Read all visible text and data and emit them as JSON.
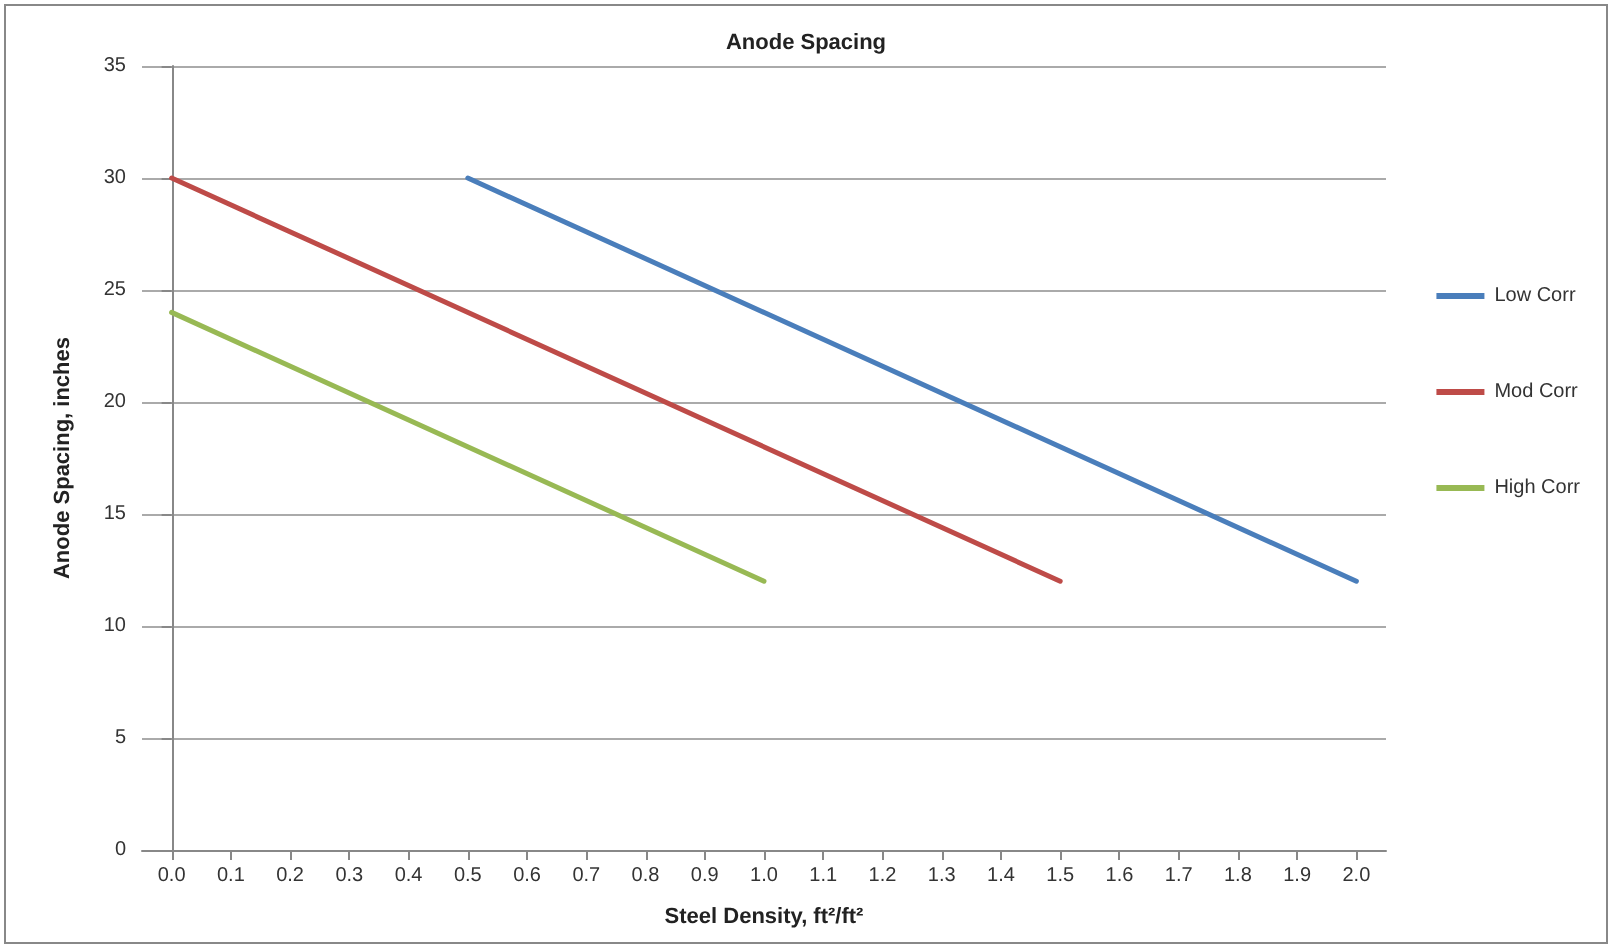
{
  "chart_data": {
    "type": "line",
    "title": "Anode Spacing",
    "xlabel": "Steel Density, ft²/ft²",
    "ylabel": "Anode Spacing, inches",
    "xlim": [
      -0.05,
      2.05
    ],
    "xticks": [
      {
        "value": 0,
        "label": "0.0"
      },
      {
        "value": 0.1,
        "label": "0.1"
      },
      {
        "value": 0.2,
        "label": "0.2"
      },
      {
        "value": 0.3,
        "label": "0.3"
      },
      {
        "value": 0.4,
        "label": "0.4"
      },
      {
        "value": 0.5,
        "label": "0.5"
      },
      {
        "value": 0.6,
        "label": "0.6"
      },
      {
        "value": 0.7,
        "label": "0.7"
      },
      {
        "value": 0.8,
        "label": "0.8"
      },
      {
        "value": 0.9,
        "label": "0.9"
      },
      {
        "value": 1,
        "label": "1.0"
      },
      {
        "value": 1.1,
        "label": "1.1"
      },
      {
        "value": 1.2,
        "label": "1.2"
      },
      {
        "value": 1.3,
        "label": "1.3"
      },
      {
        "value": 1.4,
        "label": "1.4"
      },
      {
        "value": 1.5,
        "label": "1.5"
      },
      {
        "value": 1.6,
        "label": "1.6"
      },
      {
        "value": 1.7,
        "label": "1.7"
      },
      {
        "value": 1.8,
        "label": "1.8"
      },
      {
        "value": 1.9,
        "label": "1.9"
      },
      {
        "value": 2,
        "label": "2.0"
      }
    ],
    "ylim": [
      0,
      35
    ],
    "yticks": [
      0,
      5,
      10,
      15,
      20,
      25,
      30,
      35
    ],
    "grid": "y",
    "legend": "right",
    "marker": "none",
    "line_style": "solid",
    "series": [
      {
        "name": "Low Corr",
        "color": "#4a7ebb",
        "x": [
          0.5,
          2.0
        ],
        "values": [
          30,
          12
        ]
      },
      {
        "name": "Mod Corr",
        "color": "#be4b48",
        "x": [
          0.0,
          1.5
        ],
        "values": [
          30,
          12
        ]
      },
      {
        "name": "High Corr",
        "color": "#98b954",
        "x": [
          0.0,
          1.0
        ],
        "values": [
          24,
          12
        ]
      }
    ]
  }
}
